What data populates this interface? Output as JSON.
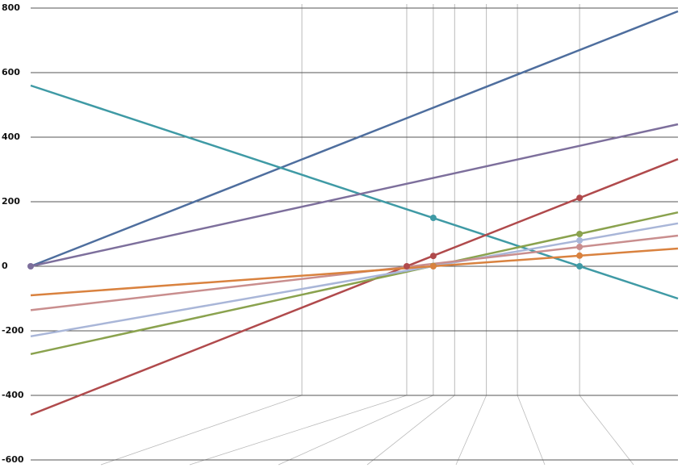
{
  "chart_data": {
    "type": "line",
    "xlim": [
      0,
      100
    ],
    "ylim": [
      -600,
      800
    ],
    "yticks": [
      -600,
      -400,
      -200,
      0,
      200,
      400,
      600,
      800
    ],
    "xticks": [
      41.9,
      58.1,
      62.2,
      65.5,
      70.4,
      75.2,
      84.8
    ],
    "grid": true,
    "series": [
      {
        "color": "#4e6e9e",
        "x": [
          0,
          100
        ],
        "values": [
          0,
          790
        ],
        "points_x": [],
        "points": []
      },
      {
        "color": "#3f9aa5",
        "x": [
          0,
          100
        ],
        "values": [
          560,
          -100
        ],
        "points_x": [
          62.2,
          84.8
        ],
        "points": [
          150,
          0
        ]
      },
      {
        "color": "#7d6f9c",
        "x": [
          0,
          100
        ],
        "values": [
          0,
          440
        ],
        "points_x": [
          0
        ],
        "points": [
          0
        ]
      },
      {
        "color": "#b04a4c",
        "x": [
          0,
          100
        ],
        "values": [
          -460,
          332
        ],
        "points_x": [
          58.1,
          62.2,
          84.8
        ],
        "points": [
          0,
          32,
          212
        ]
      },
      {
        "color": "#8aa24e",
        "x": [
          0,
          100
        ],
        "values": [
          -272,
          167
        ],
        "points_x": [
          62.2,
          84.8
        ],
        "points": [
          1,
          100
        ]
      },
      {
        "color": "#a9b6d8",
        "x": [
          0,
          100
        ],
        "values": [
          -217,
          133
        ],
        "points_x": [
          84.8
        ],
        "points": [
          80
        ]
      },
      {
        "color": "#c98e8e",
        "x": [
          0,
          100
        ],
        "values": [
          -136,
          95
        ],
        "points_x": [
          84.8
        ],
        "points": [
          60
        ]
      },
      {
        "color": "#d9823f",
        "x": [
          0,
          100
        ],
        "values": [
          -90,
          55
        ],
        "points_x": [
          62.2,
          84.8
        ],
        "points": [
          0,
          33
        ]
      }
    ]
  }
}
